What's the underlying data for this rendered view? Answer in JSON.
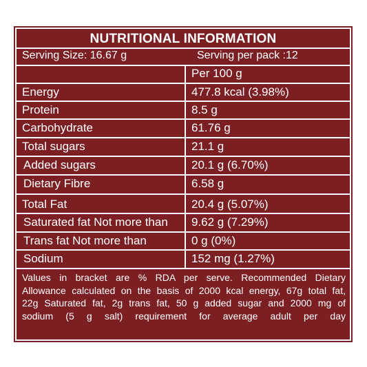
{
  "title": "NUTRITIONAL INFORMATION",
  "serving_size": "Serving Size: 16.67 g",
  "serving_per_pack": "Serving  per pack :12",
  "column_header": "Per 100 g",
  "rows": [
    {
      "label": "Energy",
      "value": "477.8 kcal (3.98%)"
    },
    {
      "label": "Protein",
      "value": "8.5 g"
    },
    {
      "label": "Carbohydrate",
      "value": "61.76 g"
    },
    {
      "label": "Total sugars",
      "value": "21.1 g"
    },
    {
      "label": "Added sugars",
      "value": "20.1 g (6.70%)"
    },
    {
      "label": "Dietary Fibre",
      "value": "6.58 g"
    },
    {
      "label": "Total Fat",
      "value": "20.4 g (5.07%)"
    },
    {
      "label": "Saturated fat Not more than",
      "value": "9.62 g (7.29%)"
    },
    {
      "label": "Trans fat Not more than",
      "value": "0 g (0%)"
    },
    {
      "label": "Sodium",
      "value": "152 mg (1.27%)"
    }
  ],
  "footnote_lines": [
    "Values in bracket are % RDA per serve. Recommended Dietary",
    "Allowance calculated on the basis of 2000 kcal energy, 67g total fat,",
    "22g Saturated fat, 2g trans fat, 50 g added sugar and 2000 mg of",
    "sodium (5 g salt) requirement for average adult per day"
  ],
  "colors": {
    "background": "#7b1f22",
    "text": "#ffffff"
  }
}
